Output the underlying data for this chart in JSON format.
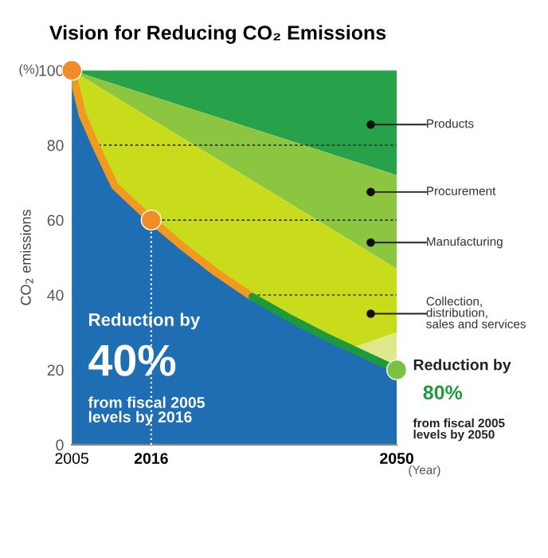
{
  "chart_data": {
    "type": "area",
    "title": "Vision for Reducing CO₂ Emissions",
    "ylabel": "CO$_{2}$ emissions",
    "xlabel": "(Year)",
    "x": [
      2005,
      2006.5,
      2008.3,
      2011,
      2016,
      2020,
      2025,
      2030,
      2035,
      2040,
      2045,
      2050
    ],
    "series": [
      {
        "color": "#1f6db3",
        "values": [
          100,
          88,
          80,
          69,
          60,
          53.5,
          46,
          39.5,
          34,
          29,
          24.5,
          20
        ]
      },
      {
        "type": "line",
        "color": "#f29a1f",
        "values": [
          100,
          88,
          80,
          69,
          60,
          53.5,
          46,
          39.5,
          null,
          null,
          null,
          null
        ]
      },
      {
        "type": "line",
        "color": "#1e9a3c",
        "values": [
          null,
          null,
          null,
          null,
          null,
          null,
          null,
          39.5,
          34,
          29,
          24.5,
          20
        ]
      },
      {
        "type": "scatter",
        "x": [
          2005,
          2016,
          2050
        ],
        "values": [
          100,
          60,
          20
        ],
        "colors": [
          "#f28c28",
          "#f28c28",
          "#7cc242"
        ]
      }
    ],
    "xlim": [
      2005,
      2050
    ],
    "ylim": [
      0,
      100
    ],
    "xticks": [
      2005,
      2016,
      2050
    ],
    "yticks": [
      0,
      20,
      40,
      60,
      80,
      100
    ],
    "grid": "y",
    "line_style": "solid",
    "ref_lines": [
      {
        "axis": "x",
        "value": 2016,
        "color": "#ffffff",
        "line_style": "dotted"
      }
    ],
    "annotations": [
      "(%)",
      "Reduction by",
      "40%",
      "from fiscal 2005\nlevels by 2016",
      "Products",
      "Procurement",
      "Manufacturing",
      "Collection,\ndistribution,\nsales and services",
      "Reduction by",
      "80%",
      "from fiscal 2005\nlevels by 2050"
    ]
  }
}
